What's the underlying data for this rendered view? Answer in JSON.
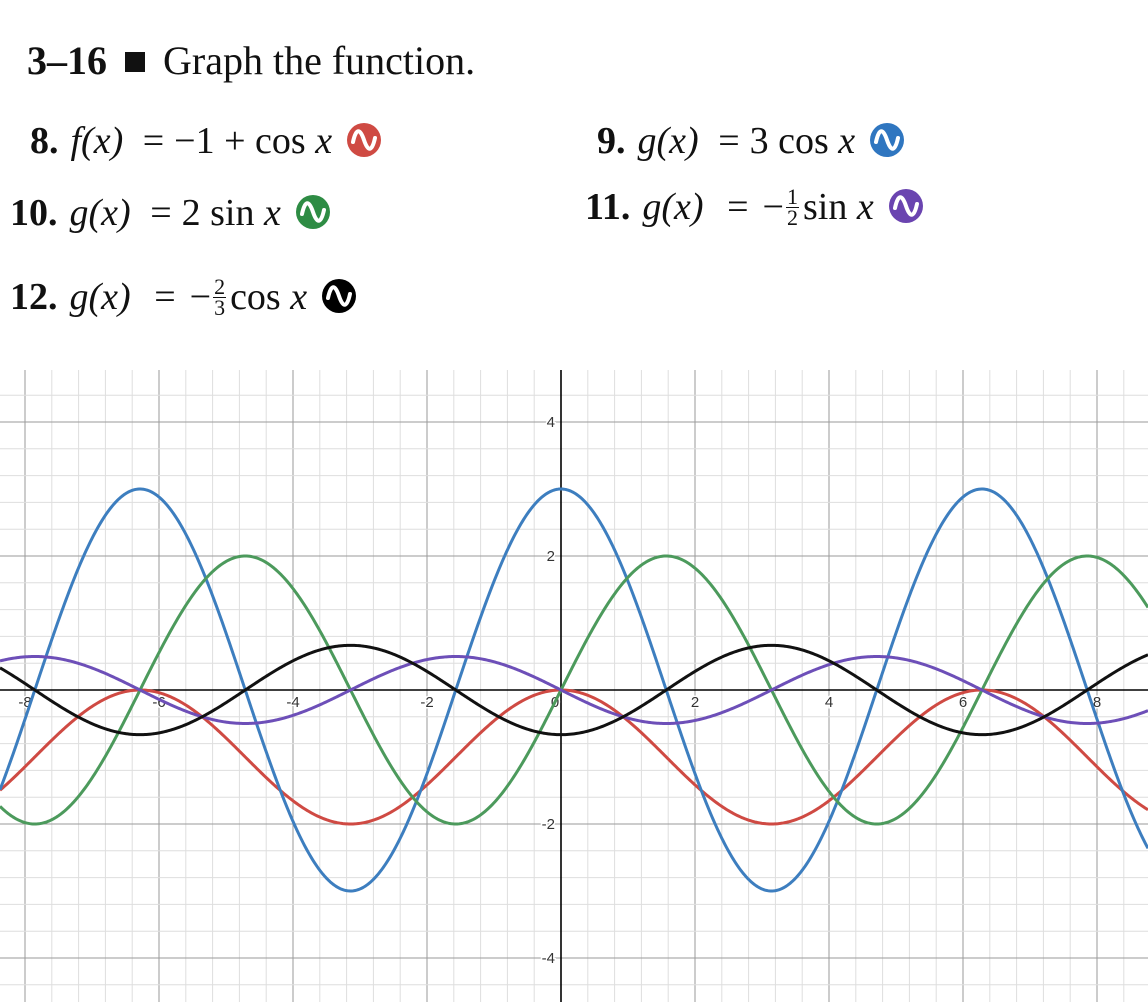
{
  "heading": {
    "number": "3–16",
    "text": "Graph the function."
  },
  "problems": [
    {
      "num": "8.",
      "name": "f(x)",
      "eq": "=",
      "rhs_pre": "−1 + cos",
      "frac": null,
      "var": "x",
      "color": "#cf4a43",
      "icon": "wave-icon"
    },
    {
      "num": "9.",
      "name": "g(x)",
      "eq": "=",
      "rhs_pre": "3 cos",
      "frac": null,
      "var": "x",
      "color": "#2f76c0",
      "icon": "wave-icon"
    },
    {
      "num": "10.",
      "name": "g(x)",
      "eq": "=",
      "rhs_pre": "2 sin",
      "frac": null,
      "var": "x",
      "color": "#2e8c44",
      "icon": "wave-icon"
    },
    {
      "num": "11.",
      "name": "g(x)",
      "eq": "=",
      "rhs_pre": "−",
      "frac": {
        "num": "1",
        "den": "2"
      },
      "rhs_post": "sin",
      "var": "x",
      "color": "#6a44b0",
      "icon": "wave-icon"
    },
    {
      "num": "12.",
      "name": "g(x)",
      "eq": "=",
      "rhs_pre": "−",
      "frac": {
        "num": "2",
        "den": "3"
      },
      "rhs_post": "cos",
      "var": "x",
      "color": "#000000",
      "icon": "wave-icon"
    }
  ],
  "chart_data": {
    "type": "line",
    "title": "",
    "xlabel": "",
    "ylabel": "",
    "xlim": [
      -8.5,
      8.5
    ],
    "ylim": [
      -4.7,
      4.7
    ],
    "grid": true,
    "minor_grid_step": 0.4,
    "x_ticks": [
      "-8",
      "-6",
      "-4",
      "-2",
      "0",
      "2",
      "4",
      "6",
      "8"
    ],
    "y_ticks": [
      "4",
      "2",
      "-2",
      "-4"
    ],
    "series": [
      {
        "function": "f(x) = −1 + cos x",
        "color": "#cf4a43",
        "amplitude": 1,
        "offset": -1,
        "kind": "cos"
      },
      {
        "function": "g(x) = 3 cos x",
        "color": "#3d7ebf",
        "amplitude": 3,
        "offset": 0,
        "kind": "cos"
      },
      {
        "function": "g(x) = 2 sin x",
        "color": "#4c9a5c",
        "amplitude": 2,
        "offset": 0,
        "kind": "sin"
      },
      {
        "function": "g(x) = −1/2 sin x",
        "color": "#6d4fb8",
        "amplitude": -0.5,
        "offset": 0,
        "kind": "sin"
      },
      {
        "function": "g(x) = −2/3 cos x",
        "color": "#111111",
        "amplitude": -0.6667,
        "offset": 0,
        "kind": "cos"
      }
    ]
  }
}
